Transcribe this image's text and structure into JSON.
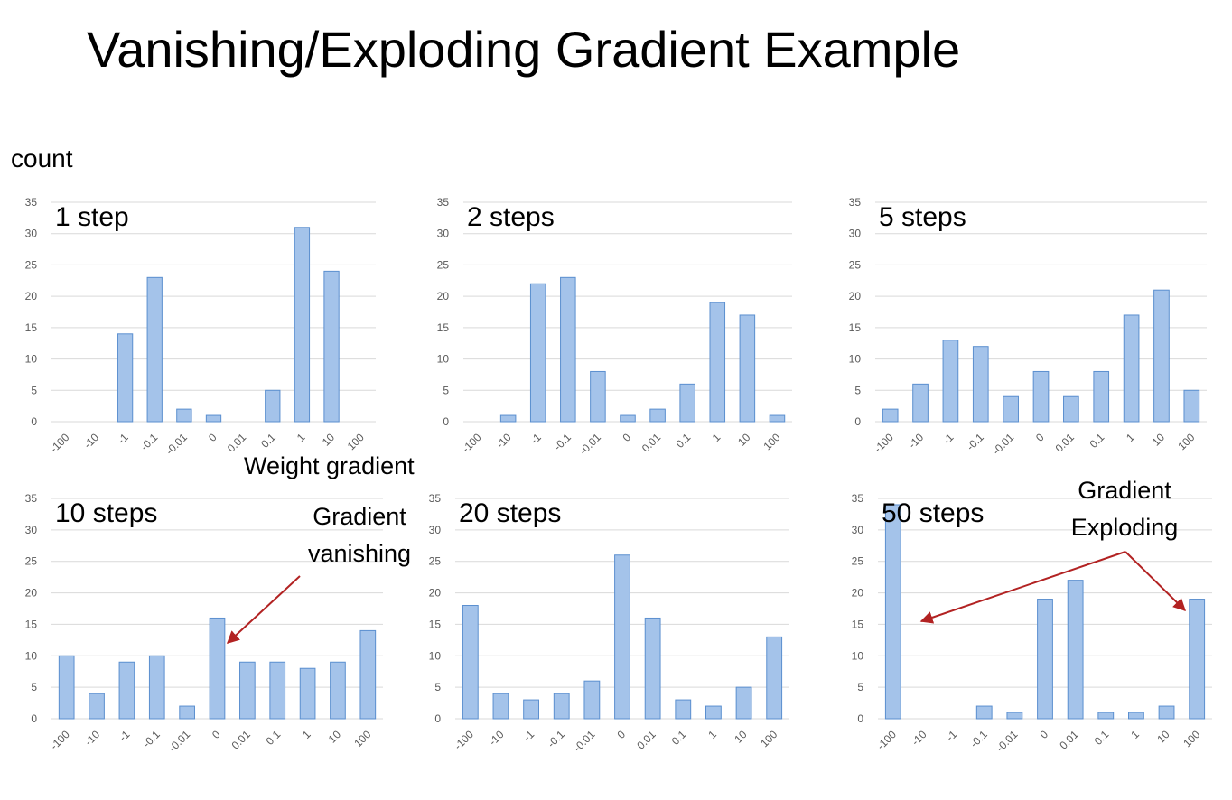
{
  "title": "Vanishing/Exploding Gradient Example",
  "ylabel": "count",
  "xlabel_note": "Weight gradient",
  "annotations": {
    "vanishing": "Gradient\nvanishing",
    "exploding": "Gradient\nExploding"
  },
  "colors": {
    "bar_fill": "#a4c3ea",
    "bar_stroke": "#5b8fcf",
    "grid": "#d9d9d9",
    "tick_text": "#595959",
    "arrow": "#b22222"
  },
  "chart_data": [
    {
      "type": "bar",
      "title": "1 step",
      "categories": [
        "-100",
        "-10",
        "-1",
        "-0.1",
        "-0.01",
        "0",
        "0.01",
        "0.1",
        "1",
        "10",
        "100"
      ],
      "values": [
        0,
        0,
        14,
        23,
        2,
        1,
        0,
        5,
        31,
        24,
        0
      ],
      "yticks": [
        0,
        5,
        10,
        15,
        20,
        25,
        30,
        35
      ],
      "ylim": [
        0,
        35
      ],
      "grid": true
    },
    {
      "type": "bar",
      "title": "2 steps",
      "categories": [
        "-100",
        "-10",
        "-1",
        "-0.1",
        "-0.01",
        "0",
        "0.01",
        "0.1",
        "1",
        "10",
        "100"
      ],
      "values": [
        0,
        1,
        22,
        23,
        8,
        1,
        2,
        6,
        19,
        17,
        1
      ],
      "yticks": [
        0,
        5,
        10,
        15,
        20,
        25,
        30,
        35
      ],
      "ylim": [
        0,
        35
      ],
      "grid": true
    },
    {
      "type": "bar",
      "title": "5 steps",
      "categories": [
        "-100",
        "-10",
        "-1",
        "-0.1",
        "-0.01",
        "0",
        "0.01",
        "0.1",
        "1",
        "10",
        "100"
      ],
      "values": [
        2,
        6,
        13,
        12,
        4,
        8,
        4,
        8,
        17,
        21,
        5
      ],
      "yticks": [
        0,
        5,
        10,
        15,
        20,
        25,
        30,
        35
      ],
      "ylim": [
        0,
        35
      ],
      "grid": true
    },
    {
      "type": "bar",
      "title": "10 steps",
      "categories": [
        "-100",
        "-10",
        "-1",
        "-0.1",
        "-0.01",
        "0",
        "0.01",
        "0.1",
        "1",
        "10",
        "100"
      ],
      "values": [
        10,
        4,
        9,
        10,
        2,
        16,
        9,
        9,
        8,
        9,
        14
      ],
      "yticks": [
        0,
        5,
        10,
        15,
        20,
        25,
        30,
        35
      ],
      "ylim": [
        0,
        35
      ],
      "grid": true
    },
    {
      "type": "bar",
      "title": "20 steps",
      "categories": [
        "-100",
        "-10",
        "-1",
        "-0.1",
        "-0.01",
        "0",
        "0.01",
        "0.1",
        "1",
        "10",
        "100"
      ],
      "values": [
        18,
        4,
        3,
        4,
        6,
        26,
        16,
        3,
        2,
        5,
        13
      ],
      "yticks": [
        0,
        5,
        10,
        15,
        20,
        25,
        30,
        35
      ],
      "ylim": [
        0,
        35
      ],
      "grid": true
    },
    {
      "type": "bar",
      "title": "50 steps",
      "categories": [
        "-100",
        "-10",
        "-1",
        "-0.1",
        "-0.01",
        "0",
        "0.01",
        "0.1",
        "1",
        "10",
        "100"
      ],
      "values": [
        34,
        0,
        0,
        2,
        1,
        19,
        22,
        1,
        1,
        2,
        19
      ],
      "yticks": [
        0,
        5,
        10,
        15,
        20,
        25,
        30,
        35
      ],
      "ylim": [
        0,
        35
      ],
      "grid": true
    }
  ]
}
